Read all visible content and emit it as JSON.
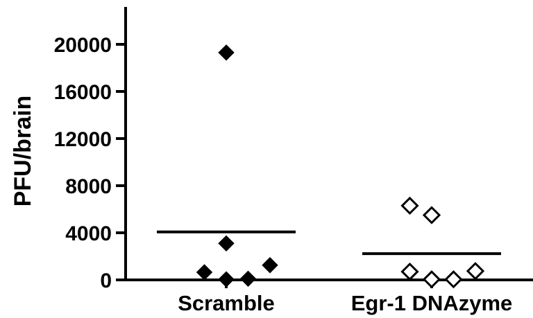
{
  "chart_data": {
    "type": "scatter",
    "title": "",
    "xlabel": "",
    "ylabel": "PFU/brain",
    "ylim": [
      0,
      23000
    ],
    "yticks": [
      0,
      4000,
      8000,
      12000,
      16000,
      20000
    ],
    "ytick_labels": [
      "0",
      "4000",
      "8000",
      "12000",
      "16000",
      "20000"
    ],
    "categories": [
      "Scramble",
      "Egr-1 DNAzyme"
    ],
    "grid": false,
    "legend": "none",
    "series": [
      {
        "category": "Scramble",
        "marker": "filled-diamond",
        "color": "#000000",
        "points": [
          {
            "x_offset": 0.0,
            "y": 19300
          },
          {
            "x_offset": 0.0,
            "y": 3100
          },
          {
            "x_offset": -0.45,
            "y": 650
          },
          {
            "x_offset": 0.0,
            "y": 50
          },
          {
            "x_offset": 0.45,
            "y": 100
          },
          {
            "x_offset": 0.9,
            "y": 1250
          }
        ],
        "mean": 4075
      },
      {
        "category": "Egr-1 DNAzyme",
        "marker": "open-diamond",
        "color": "#000000",
        "points": [
          {
            "x_offset": -0.45,
            "y": 6300
          },
          {
            "x_offset": 0.0,
            "y": 5500
          },
          {
            "x_offset": -0.45,
            "y": 700
          },
          {
            "x_offset": 0.0,
            "y": 50
          },
          {
            "x_offset": 0.45,
            "y": 50
          },
          {
            "x_offset": 0.9,
            "y": 750
          }
        ],
        "mean": 2225
      }
    ]
  }
}
